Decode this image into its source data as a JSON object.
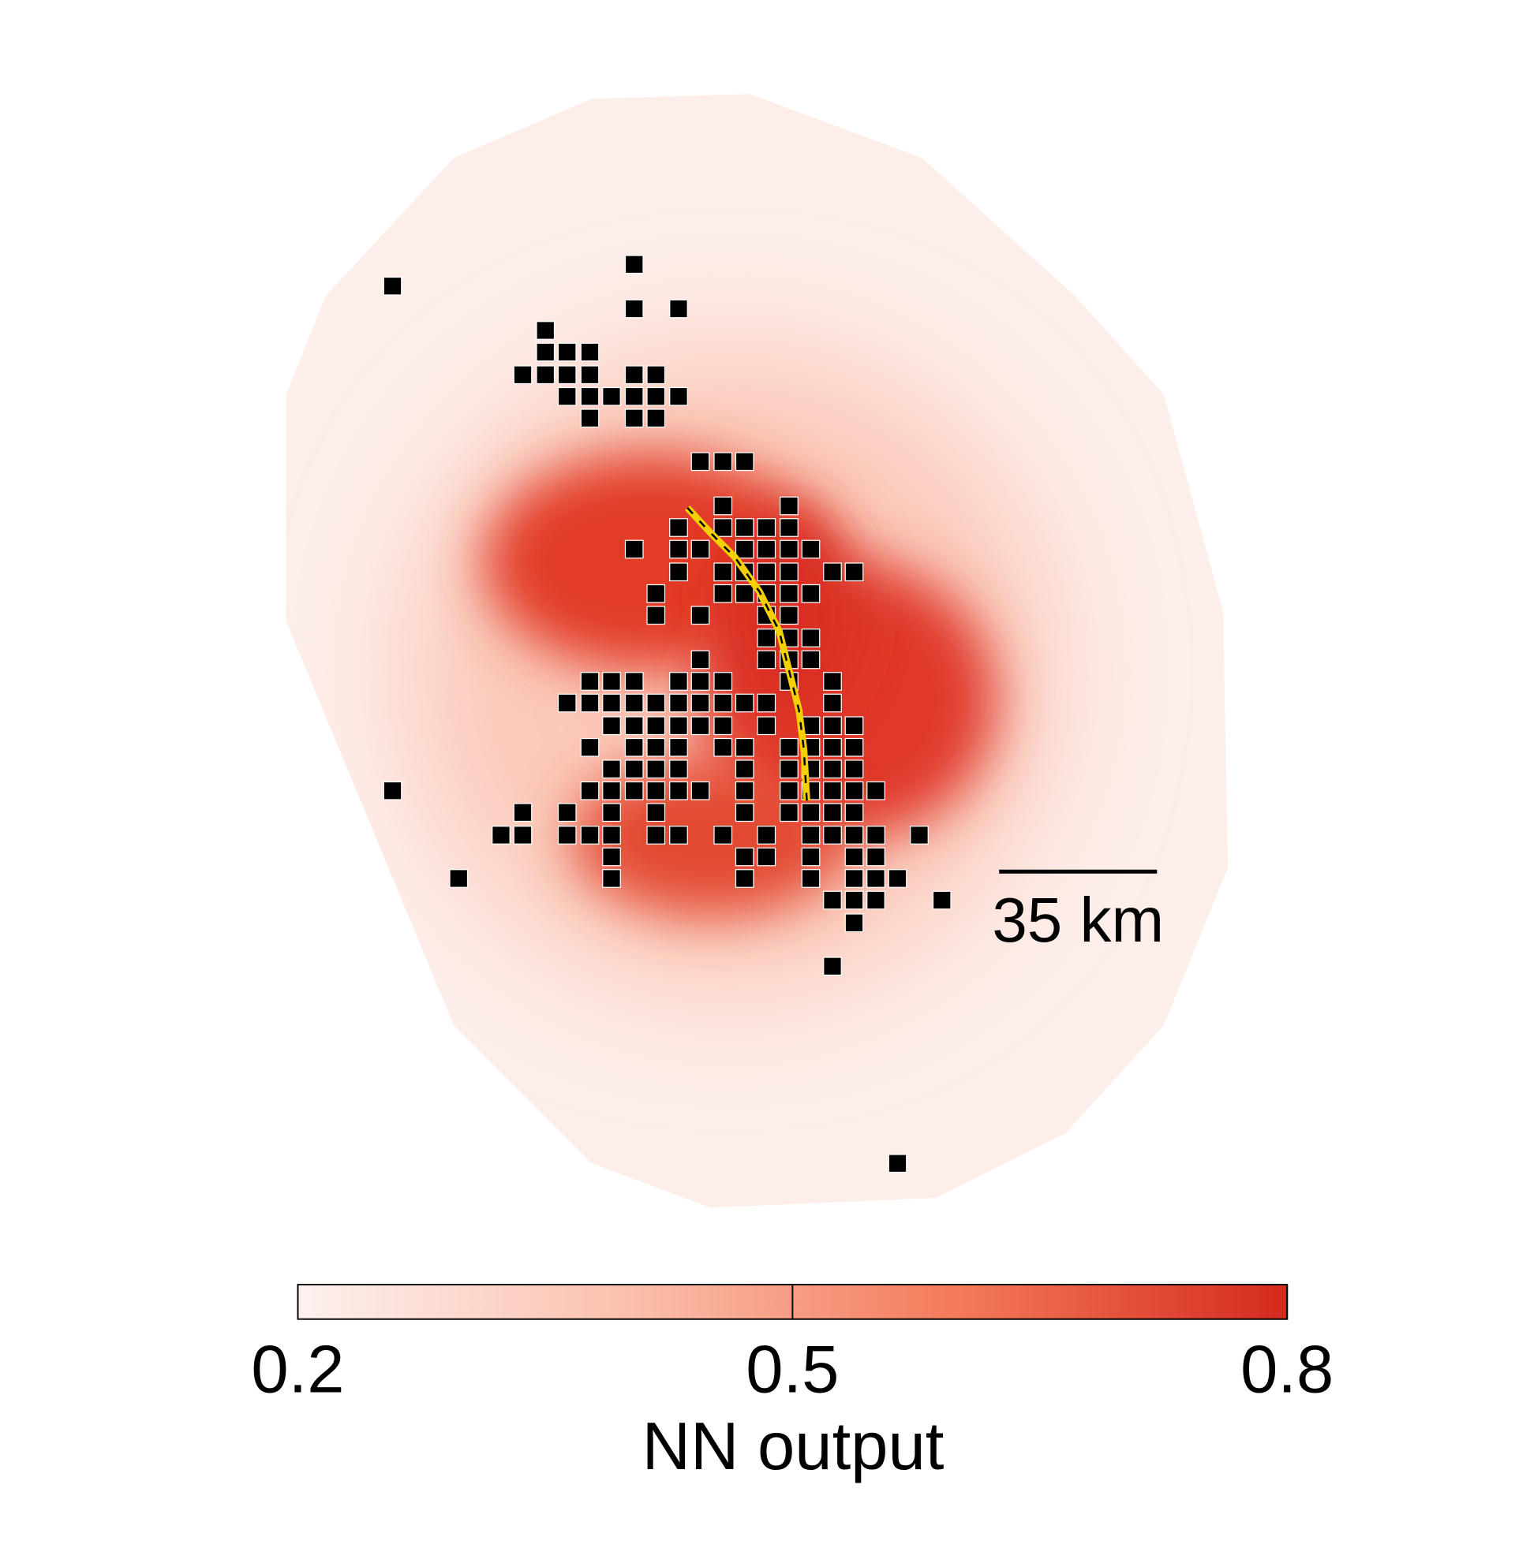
{
  "map": {
    "scale_bar": {
      "label": "35 km"
    }
  },
  "colorbar": {
    "label": "NN output",
    "lim": [
      0.2,
      0.8
    ],
    "ticks": [
      0.2,
      0.5,
      0.8
    ],
    "colors": [
      "#fdf1ef",
      "#fbc0ad",
      "#f47a5a",
      "#d42a1e"
    ]
  }
}
